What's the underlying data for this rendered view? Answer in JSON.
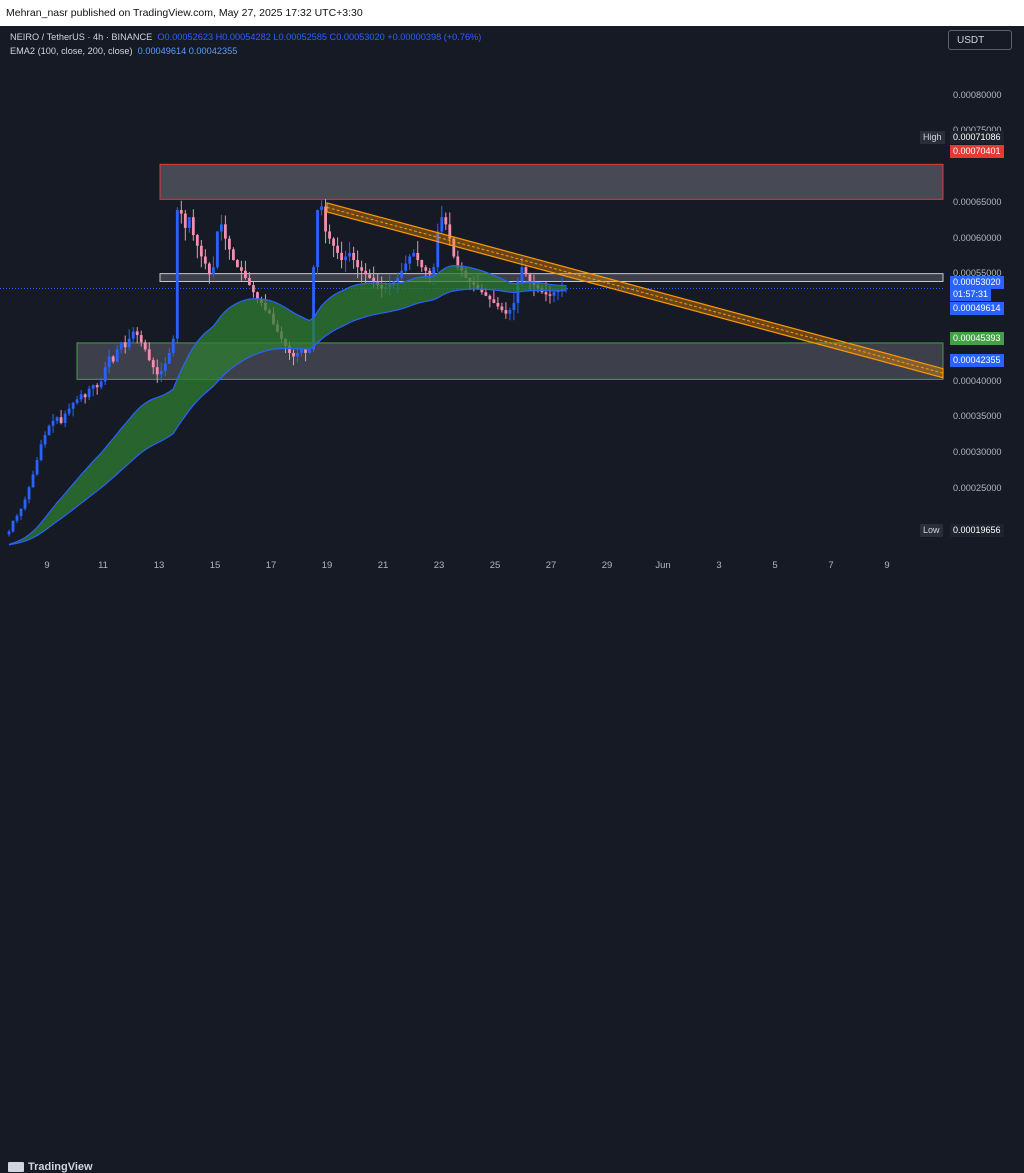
{
  "header": {
    "published": "Mehran_nasr published on TradingView.com, May 27, 2025 17:32 UTC+3:30"
  },
  "legend": {
    "symbol_line": "NEIRO / TetherUS · 4h · BINANCE",
    "ohlc": "O0.00052623 H0.00054282 L0.00052585 C0.00053020 +0.00000398 (+0.76%)",
    "ema_label": "EMA2 (100, close, 200, close)",
    "ema_values": "0.00049614 0.00042355"
  },
  "currency_button": "USDT",
  "footer": {
    "brand": "TradingView"
  },
  "colors": {
    "background": "#161a25",
    "up": "#2962ff",
    "down": "#f48fb1",
    "ema_fill": "#2e7d32",
    "ema_line": "#2962ff",
    "resistance_zone": "#e53935",
    "support_zone": "#43a047",
    "trendline": "#ff9800"
  },
  "chart_data": {
    "type": "candlestick",
    "ylim": [
      0.00016,
      0.00085
    ],
    "price_ticks": [
      "0.00080000",
      "0.00075000",
      "0.00065000",
      "0.00060000",
      "0.00055000",
      "0.00040000",
      "0.00035000",
      "0.00030000",
      "0.00025000"
    ],
    "x_ticks": [
      "9",
      "11",
      "13",
      "15",
      "17",
      "19",
      "21",
      "23",
      "25",
      "27",
      "29",
      "Jun",
      "3",
      "5",
      "7",
      "9"
    ],
    "tags": {
      "high_label": "High",
      "high_value": "0.00071086",
      "zone_top": "0.00070401",
      "last_price": "0.00053020",
      "countdown": "01:57:31",
      "ema100": "0.00049614",
      "support_top": "0.00045393",
      "ema200": "0.00042355",
      "low_label": "Low",
      "low_value": "0.00019656"
    },
    "zones": [
      {
        "name": "resistance",
        "from": 0.000655,
        "to": 0.000704
      },
      {
        "name": "mid",
        "from": 0.00054,
        "to": 0.000551
      },
      {
        "name": "support",
        "from": 0.000403,
        "to": 0.000454
      }
    ],
    "trendline": {
      "from": [
        18.5,
        0.00065
      ],
      "to": [
        9.5,
        0.000418
      ]
    },
    "closes": [
      0.00019,
      0.000205,
      0.000212,
      0.000222,
      0.000235,
      0.000252,
      0.00027,
      0.00029,
      0.000312,
      0.000325,
      0.000338,
      0.000345,
      0.00035,
      0.000342,
      0.000355,
      0.000362,
      0.00037,
      0.000375,
      0.000382,
      0.000378,
      0.00039,
      0.000395,
      0.000392,
      0.0004,
      0.00042,
      0.000435,
      0.000428,
      0.000445,
      0.000455,
      0.000448,
      0.00046,
      0.00047,
      0.000465,
      0.000455,
      0.000445,
      0.00043,
      0.00042,
      0.00041,
      0.000415,
      0.000425,
      0.00044,
      0.00046,
      0.00064,
      0.000635,
      0.000615,
      0.00063,
      0.000605,
      0.00059,
      0.000575,
      0.000565,
      0.00055,
      0.00056,
      0.00061,
      0.00062,
      0.0006,
      0.000585,
      0.00057,
      0.00056,
      0.000555,
      0.000545,
      0.000535,
      0.000525,
      0.000515,
      0.00051,
      0.0005,
      0.000495,
      0.00048,
      0.00047,
      0.00046,
      0.00045,
      0.00044,
      0.000435,
      0.00044,
      0.000445,
      0.00044,
      0.000445,
      0.00056,
      0.00064,
      0.000645,
      0.00061,
      0.0006,
      0.00059,
      0.00058,
      0.00057,
      0.000575,
      0.00058,
      0.00057,
      0.00056,
      0.000555,
      0.00055,
      0.000545,
      0.00054,
      0.000535,
      0.00053,
      0.000532,
      0.000535,
      0.00054,
      0.000545,
      0.000555,
      0.000565,
      0.000575,
      0.00058,
      0.00057,
      0.00056,
      0.000555,
      0.00055,
      0.00056,
      0.00061,
      0.00063,
      0.00062,
      0.0006,
      0.000575,
      0.00056,
      0.000555,
      0.000545,
      0.00054,
      0.000535,
      0.00053,
      0.000525,
      0.00052,
      0.000515,
      0.00051,
      0.000505,
      0.0005,
      0.000495,
      0.0005,
      0.00051,
      0.00054,
      0.00056,
      0.00055,
      0.00054,
      0.000535,
      0.00053,
      0.000525,
      0.000522,
      0.00052,
      0.000525,
      0.000528,
      0.00053,
      0.00053
    ]
  }
}
